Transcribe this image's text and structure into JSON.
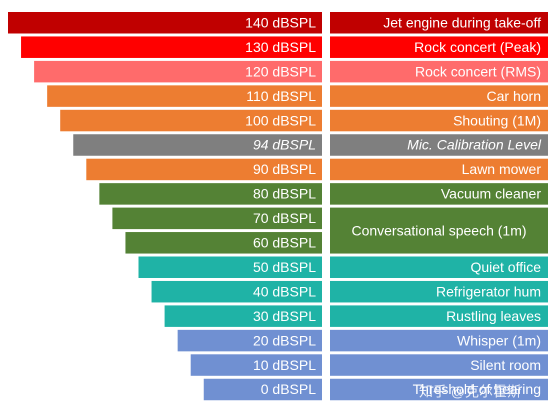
{
  "rows": [
    {
      "level": "140 dBSPL",
      "source": "Jet engine during take-off",
      "color": "#c00000"
    },
    {
      "level": "130 dBSPL",
      "source": "Rock concert (Peak)",
      "color": "#ff0000"
    },
    {
      "level": "120 dBSPL",
      "source": "Rock concert (RMS)",
      "color": "#ff6b6b"
    },
    {
      "level": "110 dBSPL",
      "source": "Car horn",
      "color": "#ed7d31"
    },
    {
      "level": "100 dBSPL",
      "source": "Shouting (1M)",
      "color": "#ed7d31"
    },
    {
      "level": "94 dBSPL",
      "source": "Mic. Calibration Level",
      "color": "#7f7f7f",
      "italic": true
    },
    {
      "level": "90 dBSPL",
      "source": "Lawn mower",
      "color": "#ed7d31"
    },
    {
      "level": "80 dBSPL",
      "source": "Vacuum cleaner",
      "color": "#548235"
    },
    {
      "level": "70 dBSPL",
      "source": "Conversational speech (1m)",
      "color": "#548235"
    },
    {
      "level": "60 dBSPL",
      "source": null,
      "color": "#548235"
    },
    {
      "level": "50 dBSPL",
      "source": "Quiet office",
      "color": "#1fb3a6"
    },
    {
      "level": "40 dBSPL",
      "source": "Refrigerator hum",
      "color": "#1fb3a6"
    },
    {
      "level": "30 dBSPL",
      "source": "Rustling leaves",
      "color": "#1fb3a6"
    },
    {
      "level": "20 dBSPL",
      "source": "Whisper (1m)",
      "color": "#7090d2"
    },
    {
      "level": "10 dBSPL",
      "source": "Silent room",
      "color": "#7090d2"
    },
    {
      "level": "0 dBSPL",
      "source": "Threshold of hearing",
      "color": "#7090d2"
    }
  ],
  "watermark": "知乎 @克尔霍斯"
}
